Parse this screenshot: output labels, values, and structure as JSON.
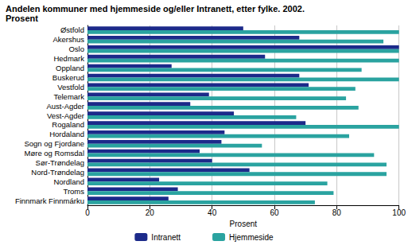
{
  "chart_data": {
    "type": "bar",
    "orientation": "horizontal",
    "title": "Andelen kommuner med hjemmeside og/eller Intranett, etter fylke. 2002.\nProsent",
    "x_label": "Prosent",
    "categories": [
      "Østfold",
      "Akershus",
      "Oslo",
      "Hedmark",
      "Oppland",
      "Buskerud",
      "Vestfold",
      "Telemark",
      "Aust-Agder",
      "Vest-Agder",
      "Rogaland",
      "Hordaland",
      "Sogn og Fjordane",
      "Møre og Romsdal",
      "Sør-Trøndelag",
      "Nord-Trøndelag",
      "Nordland",
      "Troms",
      "Finnmark Finnmárku"
    ],
    "series": [
      {
        "name": "Intranett",
        "color": "#1c2a8a",
        "values": [
          50,
          68,
          100,
          57,
          27,
          68,
          71,
          39,
          33,
          47,
          70,
          44,
          43,
          36,
          40,
          52,
          23,
          29,
          26
        ]
      },
      {
        "name": "Hjemmeside",
        "color": "#2aa3a0",
        "values": [
          100,
          95,
          100,
          100,
          88,
          100,
          86,
          83,
          87,
          67,
          100,
          84,
          56,
          92,
          96,
          96,
          77,
          79,
          73
        ]
      }
    ],
    "xlim": [
      0,
      100
    ],
    "xticks": [
      0,
      20,
      40,
      60,
      80,
      100
    ],
    "grid": true,
    "legend": "bottom"
  }
}
